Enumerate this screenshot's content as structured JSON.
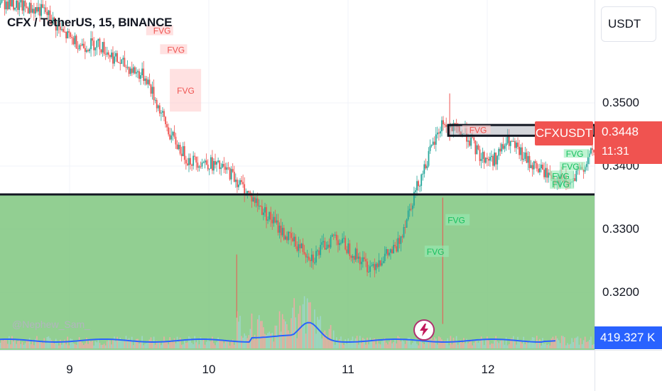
{
  "header": {
    "title": "CFX / TetherUS, 15, BINANCE"
  },
  "currency_button": "USDT",
  "price_axis": {
    "ticks": [
      "0.3500",
      "0.3400",
      "0.3300",
      "0.3200"
    ],
    "current_price": "0.3448",
    "countdown": "11:31",
    "volume_label": "419.327 K"
  },
  "symbol_label": "CFXUSDT",
  "time_axis": {
    "ticks": [
      "9",
      "10",
      "11",
      "12"
    ]
  },
  "watermark": "@Nephew_Sam_",
  "fvg_label": "FVG",
  "colors": {
    "up": "#26a69a",
    "down": "#ef5350",
    "zone": "#7fc77f",
    "volume_line": "#2962ff",
    "accent": "#f05350"
  },
  "icons": {
    "bolt": "lightning-bolt-icon"
  },
  "chart_data": {
    "type": "candlestick",
    "title": "CFX / TetherUS, 15, BINANCE",
    "x_ticks": [
      "9",
      "10",
      "11",
      "12"
    ],
    "y_ticks": [
      0.35,
      0.34,
      0.33,
      0.32
    ],
    "ylim": [
      0.3105,
      0.3664
    ],
    "current_price": 0.3448,
    "key_levels": [
      0.3355,
      0.3465
    ],
    "demand_zone": [
      0.3105,
      0.3355
    ],
    "supply_box": [
      0.3448,
      0.3465
    ],
    "fvg_labels_visible": 12,
    "volume_last": "419.327 K",
    "price_path": [
      [
        8.45,
        0.3664
      ],
      [
        8.6,
        0.3655
      ],
      [
        8.82,
        0.3645
      ],
      [
        8.95,
        0.361
      ],
      [
        9.1,
        0.359
      ],
      [
        9.2,
        0.3595
      ],
      [
        9.35,
        0.3565
      ],
      [
        9.55,
        0.354
      ],
      [
        9.72,
        0.345
      ],
      [
        9.85,
        0.341
      ],
      [
        10.0,
        0.3405
      ],
      [
        10.15,
        0.339
      ],
      [
        10.35,
        0.334
      ],
      [
        10.55,
        0.329
      ],
      [
        10.75,
        0.3255
      ],
      [
        10.9,
        0.329
      ],
      [
        11.15,
        0.324
      ],
      [
        11.35,
        0.327
      ],
      [
        11.45,
        0.334
      ],
      [
        11.55,
        0.34
      ],
      [
        11.68,
        0.347
      ],
      [
        11.73,
        0.346
      ],
      [
        11.85,
        0.345
      ],
      [
        11.95,
        0.3415
      ],
      [
        12.05,
        0.341
      ],
      [
        12.15,
        0.344
      ],
      [
        12.3,
        0.3405
      ],
      [
        12.45,
        0.3385
      ],
      [
        12.6,
        0.337
      ],
      [
        12.75,
        0.342
      ],
      [
        12.88,
        0.344
      ],
      [
        12.95,
        0.3448
      ]
    ]
  }
}
